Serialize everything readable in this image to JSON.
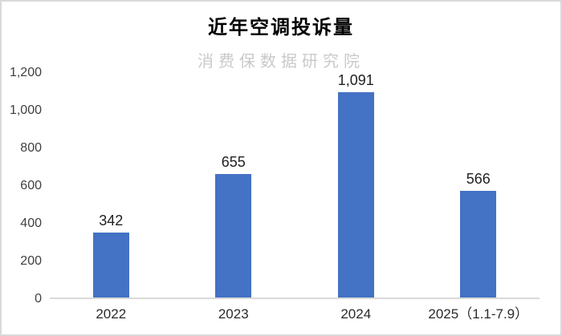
{
  "watermark": "消费保数据研究院",
  "colors": {
    "bar": "#4472C4",
    "axis_line": "#d9d9d9",
    "frame_border": "#d9d9d9",
    "watermark": "#c9c9c9",
    "title": "#000000",
    "value_label": "#1f1f1f",
    "tick_label": "#404040"
  },
  "chart_data": {
    "type": "bar",
    "title": "近年空调投诉量",
    "xlabel": "",
    "ylabel": "",
    "categories": [
      "2022",
      "2023",
      "2024",
      "2025（1.1-7.9）"
    ],
    "values": [
      342,
      655,
      1091,
      566
    ],
    "value_labels": [
      "342",
      "655",
      "1,091",
      "566"
    ],
    "y_tick_labels": [
      "1,200",
      "1,000",
      "800",
      "600",
      "400",
      "200",
      "0"
    ],
    "ylim": [
      0,
      1200
    ],
    "grid": false,
    "legend_position": "none"
  }
}
